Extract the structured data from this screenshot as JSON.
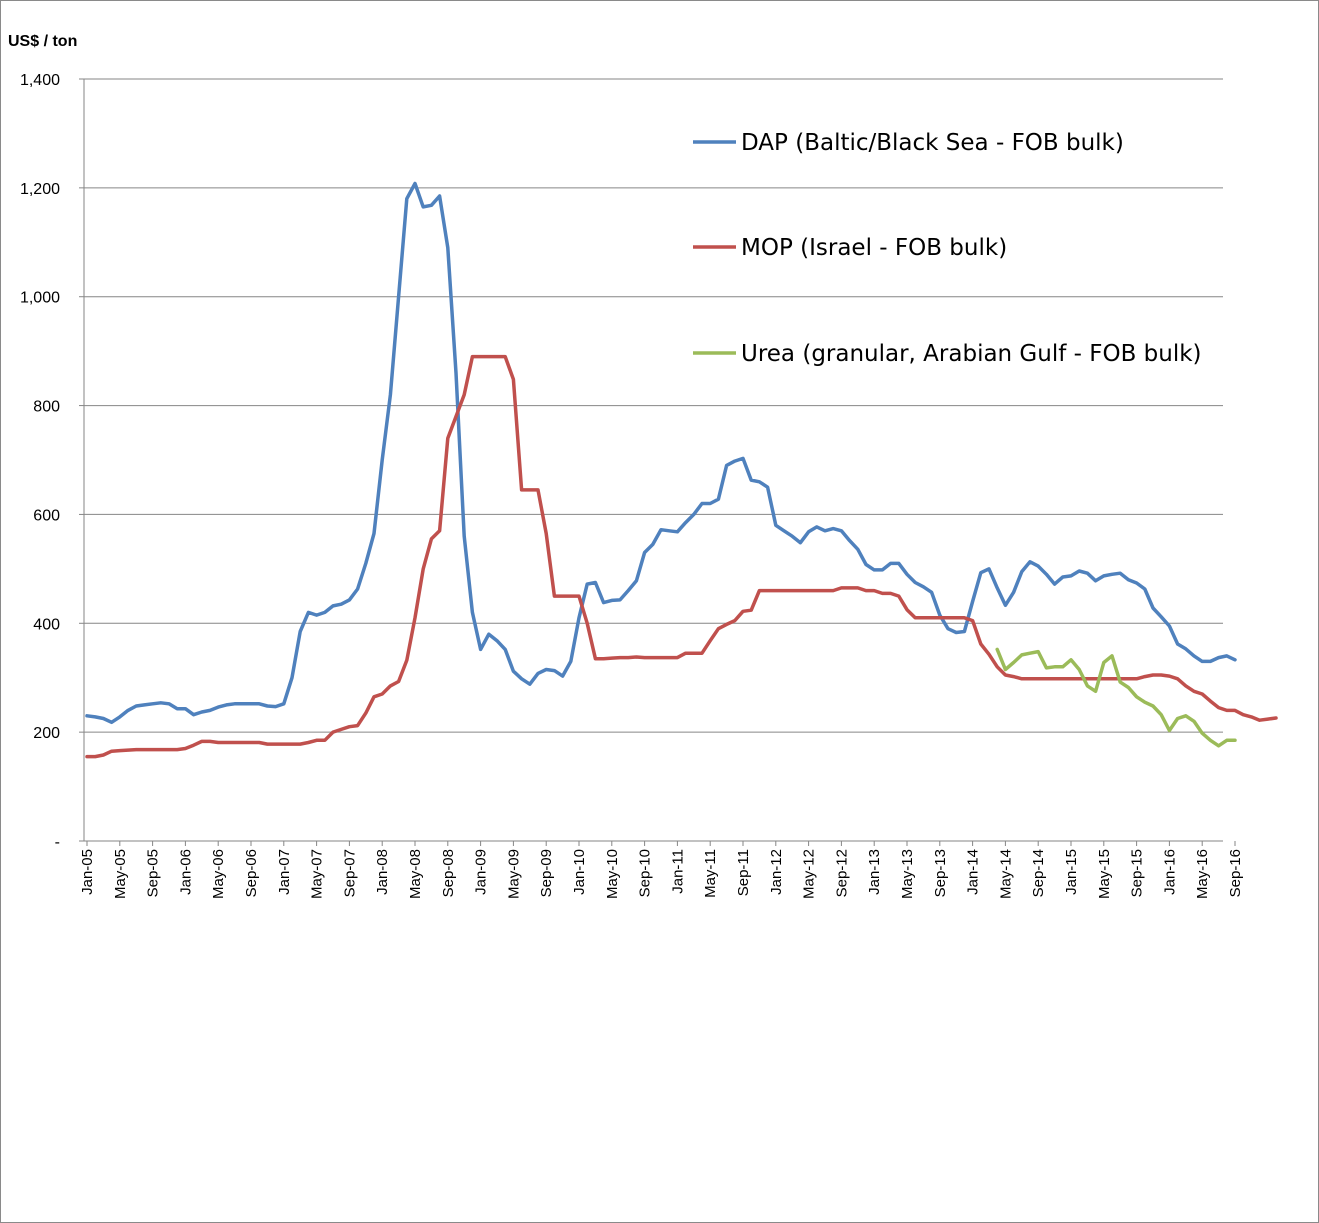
{
  "chart_data": {
    "type": "line",
    "ylabel": "US$ / ton",
    "xlabel": "",
    "ylim": [
      0,
      1400
    ],
    "y_ticks": [
      {
        "value": 0,
        "label": "-"
      },
      {
        "value": 200,
        "label": "200"
      },
      {
        "value": 400,
        "label": "400"
      },
      {
        "value": 600,
        "label": "600"
      },
      {
        "value": 800,
        "label": "800"
      },
      {
        "value": 1000,
        "label": "1,000"
      },
      {
        "value": 1200,
        "label": "1,200"
      },
      {
        "value": 1400,
        "label": "1,400"
      }
    ],
    "grid": true,
    "legend_position": "top-right",
    "x_start": "Jan-05",
    "x_tick_labels": [
      "Jan-05",
      "May-05",
      "Sep-05",
      "Jan-06",
      "May-06",
      "Sep-06",
      "Jan-07",
      "May-07",
      "Sep-07",
      "Jan-08",
      "May-08",
      "Sep-08",
      "Jan-09",
      "May-09",
      "Sep-09",
      "Jan-10",
      "May-10",
      "Sep-10",
      "Jan-11",
      "May-11",
      "Sep-11",
      "Jan-12",
      "May-12",
      "Sep-12",
      "Jan-13",
      "May-13",
      "Sep-13",
      "Jan-14",
      "May-14",
      "Sep-14",
      "Jan-15",
      "May-15",
      "Sep-15",
      "Jan-16",
      "May-16",
      "Sep-16"
    ],
    "x_tick_every_months": 4,
    "series": [
      {
        "name": "DAP (Baltic/Black Sea - FOB bulk)",
        "color": "#4f81bd",
        "start": "Jan-05",
        "values": [
          230,
          228,
          225,
          218,
          228,
          240,
          248,
          250,
          252,
          254,
          252,
          243,
          243,
          232,
          237,
          240,
          246,
          250,
          252,
          252,
          252,
          252,
          248,
          247,
          252,
          300,
          385,
          420,
          415,
          420,
          432,
          435,
          443,
          463,
          510,
          565,
          700,
          820,
          1000,
          1180,
          1208,
          1165,
          1168,
          1185,
          1090,
          860,
          560,
          420,
          352,
          380,
          368,
          352,
          312,
          298,
          288,
          308,
          315,
          313,
          303,
          330,
          410,
          472,
          475,
          438,
          442,
          443,
          460,
          478,
          530,
          545,
          572,
          570,
          568,
          585,
          600,
          620,
          620,
          628,
          690,
          698,
          703,
          663,
          660,
          650,
          580,
          570,
          560,
          548,
          568,
          577,
          570,
          574,
          570,
          552,
          536,
          508,
          498,
          498,
          510,
          510,
          490,
          475,
          467,
          457,
          415,
          390,
          383,
          385,
          440,
          493,
          500,
          465,
          433,
          457,
          495,
          513,
          505,
          490,
          472,
          485,
          487,
          496,
          492,
          478,
          487,
          490,
          492,
          480,
          474,
          463,
          428,
          412,
          395,
          362,
          353,
          340,
          330,
          330,
          337,
          340,
          333
        ]
      },
      {
        "name": "MOP (Israel - FOB bulk)",
        "color": "#c0504d",
        "start": "Jan-05",
        "values": [
          155,
          155,
          158,
          165,
          166,
          167,
          168,
          168,
          168,
          168,
          168,
          168,
          170,
          176,
          183,
          183,
          181,
          181,
          181,
          181,
          181,
          181,
          178,
          178,
          178,
          178,
          178,
          181,
          185,
          185,
          200,
          205,
          210,
          212,
          235,
          265,
          270,
          285,
          293,
          332,
          410,
          500,
          555,
          570,
          740,
          780,
          820,
          890,
          890,
          890,
          890,
          890,
          848,
          645,
          645,
          645,
          565,
          450,
          450,
          450,
          450,
          400,
          335,
          335,
          336,
          337,
          337,
          338,
          337,
          337,
          337,
          337,
          337,
          345,
          345,
          345,
          368,
          390,
          398,
          405,
          422,
          424,
          460,
          460,
          460,
          460,
          460,
          460,
          460,
          460,
          460,
          460,
          465,
          465,
          465,
          460,
          460,
          455,
          455,
          450,
          425,
          410,
          410,
          410,
          410,
          410,
          410,
          410,
          405,
          362,
          343,
          320,
          305,
          302,
          298,
          298,
          298,
          298,
          298,
          298,
          298,
          298,
          298,
          298,
          298,
          298,
          298,
          298,
          298,
          302,
          305,
          305,
          303,
          298,
          285,
          275,
          270,
          257,
          245,
          240,
          240,
          232,
          228,
          222,
          224,
          226
        ]
      },
      {
        "name": "Urea (granular, Arabian Gulf - FOB bulk)",
        "color": "#9bbb59",
        "start": "Apr-14",
        "values": [
          352,
          315,
          328,
          342,
          345,
          348,
          318,
          320,
          320,
          333,
          315,
          285,
          275,
          328,
          340,
          292,
          282,
          265,
          255,
          248,
          232,
          203,
          225,
          230,
          220,
          198,
          185,
          175,
          185,
          185
        ]
      }
    ]
  }
}
